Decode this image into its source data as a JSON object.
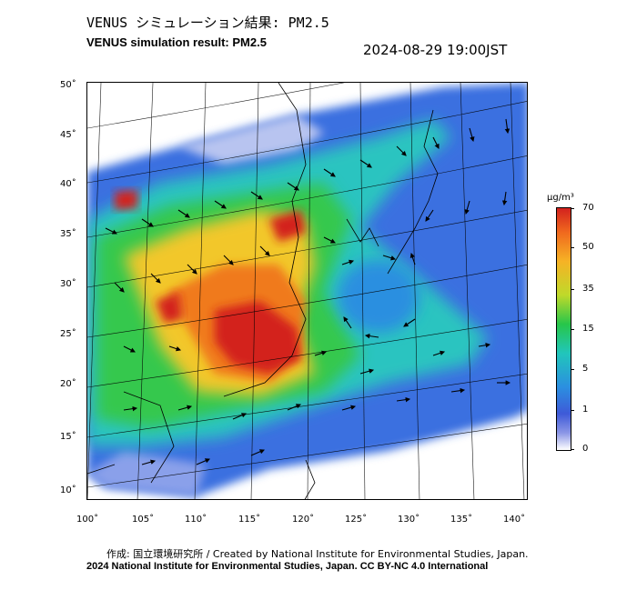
{
  "header": {
    "title_jp": "VENUS シミュレーション結果: PM2.5",
    "title_en": "VENUS simulation result: PM2.5",
    "datetime": "2024-08-29 19:00JST"
  },
  "map": {
    "lat_labels": [
      "50˚",
      "45˚",
      "40˚",
      "35˚",
      "30˚",
      "25˚",
      "20˚",
      "15˚",
      "10˚"
    ],
    "lon_labels": [
      "100˚",
      "105˚",
      "110˚",
      "115˚",
      "120˚",
      "125˚",
      "130˚",
      "135˚",
      "140˚"
    ]
  },
  "colorbar": {
    "unit": "μg/m³",
    "labels": [
      "70",
      "50",
      "35",
      "15",
      "5",
      "1",
      "0"
    ],
    "colors": {
      "max": "#d3221e",
      "high": "#f6b325",
      "mid": "#27c64a",
      "low": "#2b8fe0",
      "min": "#ffffff"
    }
  },
  "footer": {
    "credit_line1": "作成: 国立環境研究所 / Created by National Institute for Environmental Studies, Japan.",
    "credit_line2": "2024 National Institute for Environmental Studies, Japan. CC BY-NC 4.0 International"
  }
}
